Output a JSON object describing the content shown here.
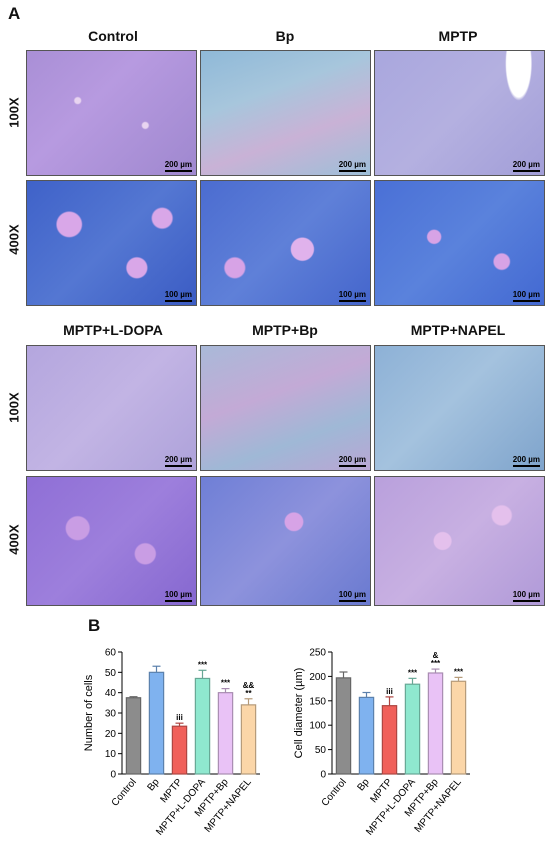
{
  "panel_a": {
    "letter": "A",
    "columns_top": [
      "Control",
      "Bp",
      "MPTP"
    ],
    "columns_bottom": [
      "MPTP+L-DOPA",
      "MPTP+Bp",
      "MPTP+NAPEL"
    ],
    "row_labels": [
      "100X",
      "400X",
      "100X",
      "400X"
    ],
    "scale_100x": "200 µm",
    "scale_400x": "100 µm"
  },
  "panel_b": {
    "letter": "B"
  },
  "colors": {
    "gray": "#8c8c8c",
    "blue": "#7fb2ef",
    "red": "#f0605a",
    "green": "#8fe8cf",
    "violet": "#e9c2f6",
    "orange": "#fbd6a8"
  },
  "chart_data": [
    {
      "type": "bar",
      "categories": [
        "Control",
        "Bp",
        "MPTP",
        "MPTP+L-DOPA",
        "MPTP+Bp",
        "MPTP+NAPEL"
      ],
      "values": [
        37.5,
        50,
        23.5,
        47,
        40,
        34
      ],
      "errors": [
        0.5,
        3,
        1.5,
        4,
        2,
        3
      ],
      "annotations": [
        "",
        "",
        "iii",
        "***",
        "***",
        "&&\n**"
      ],
      "ylabel": "Number of cells",
      "xlabel": "",
      "ylim": [
        0,
        60
      ],
      "yticks": [
        0,
        10,
        20,
        30,
        40,
        50,
        60
      ]
    },
    {
      "type": "bar",
      "categories": [
        "Control",
        "Bp",
        "MPTP",
        "MPTP+L-DOPA",
        "MPTP+Bp",
        "MPTP+NAPEL"
      ],
      "values": [
        197,
        157,
        140,
        184,
        207,
        190
      ],
      "errors": [
        12,
        10,
        18,
        12,
        8,
        8
      ],
      "annotations": [
        "",
        "",
        "iii",
        "***",
        "&\n***",
        "***"
      ],
      "ylabel": "Cell diameter (µm)",
      "xlabel": "",
      "ylim": [
        0,
        250
      ],
      "yticks": [
        0,
        50,
        100,
        150,
        200,
        250
      ]
    }
  ]
}
